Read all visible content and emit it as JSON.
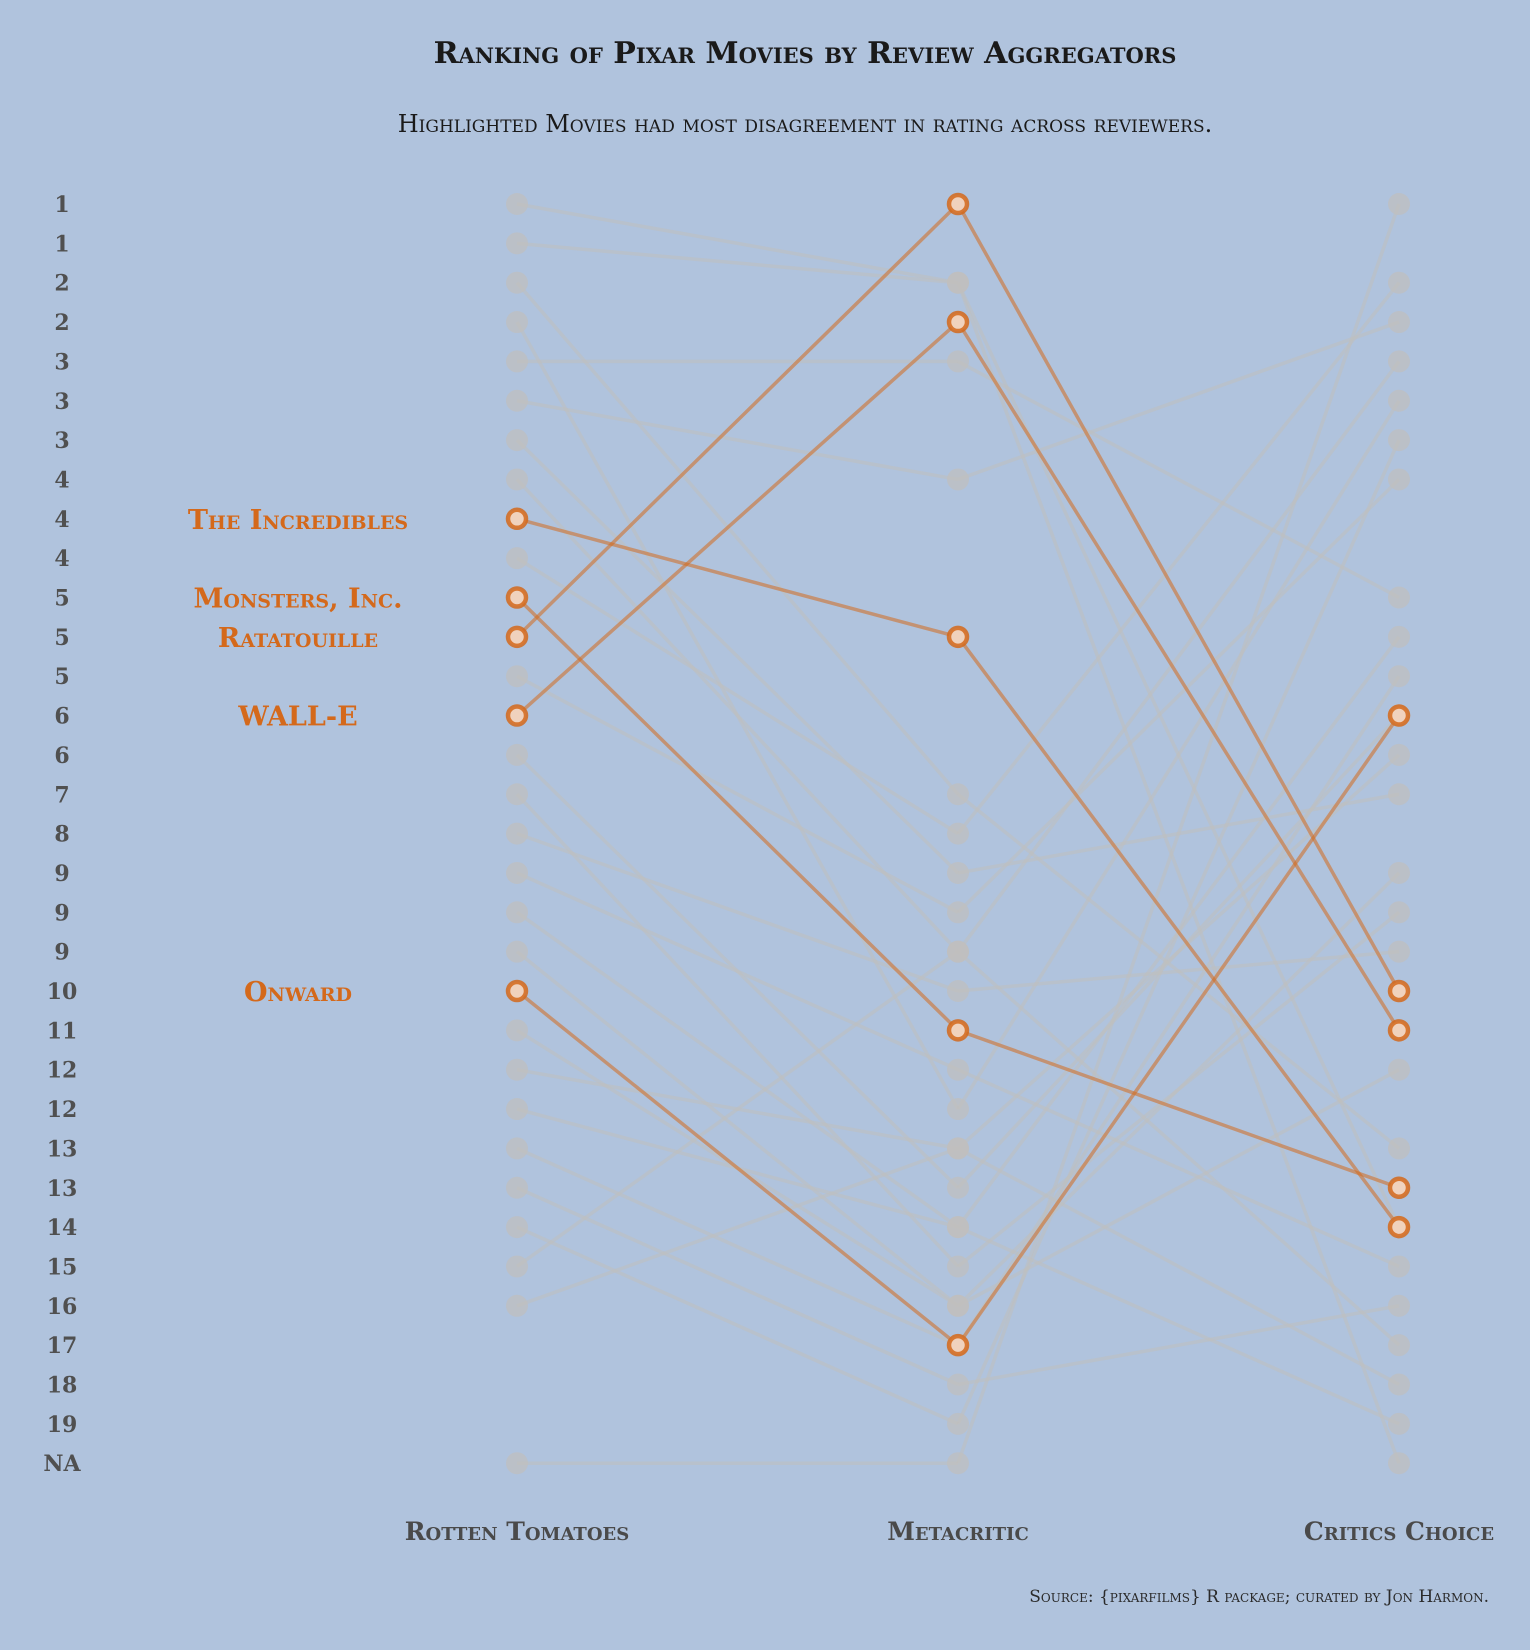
{
  "chart_data": {
    "type": "line",
    "title": "Ranking of Pixar Movies by Review Aggregators",
    "subtitle": "Highlighted Movies had most disagreement in rating across reviewers.",
    "caption": "Source: {pixarfilms} R package; curated by Jon Harmon.",
    "categories": [
      "Rotten Tomatoes",
      "Metacritic",
      "Critics Choice"
    ],
    "y_tick_labels": [
      "1",
      "1",
      "2",
      "2",
      "3",
      "3",
      "3",
      "4",
      "4",
      "4",
      "5",
      "5",
      "5",
      "6",
      "6",
      "7",
      "8",
      "9",
      "9",
      "9",
      "10",
      "11",
      "12",
      "12",
      "13",
      "13",
      "14",
      "15",
      "16",
      "17",
      "18",
      "19",
      "NA"
    ],
    "y_axis_direction": "reversed, rank 1 at top",
    "highlight_color": "#d4691b",
    "muted_color": "#c0bfbd",
    "series": [
      {
        "name": "The Incredibles",
        "values": [
          8,
          11,
          26
        ],
        "highlight": true
      },
      {
        "name": "Monsters, Inc.",
        "values": [
          10,
          21,
          25
        ],
        "highlight": true
      },
      {
        "name": "Ratatouille",
        "values": [
          11,
          0,
          20
        ],
        "highlight": true
      },
      {
        "name": "WALL-E",
        "values": [
          13,
          3,
          21
        ],
        "highlight": true
      },
      {
        "name": "Onward",
        "values": [
          20,
          29,
          13
        ],
        "highlight": true
      },
      {
        "values": [
          0,
          2,
          26
        ]
      },
      {
        "values": [
          1,
          2,
          32
        ]
      },
      {
        "values": [
          2,
          15,
          24
        ]
      },
      {
        "values": [
          4,
          4,
          10
        ]
      },
      {
        "values": [
          5,
          7,
          3
        ]
      },
      {
        "values": [
          6,
          17,
          15
        ]
      },
      {
        "values": [
          7,
          19,
          4
        ]
      },
      {
        "values": [
          9,
          16,
          2
        ]
      },
      {
        "values": [
          12,
          18,
          7
        ]
      },
      {
        "values": [
          15,
          27,
          18
        ]
      },
      {
        "values": [
          16,
          20,
          19
        ]
      },
      {
        "values": [
          17,
          22,
          27
        ]
      },
      {
        "values": [
          21,
          28,
          17
        ]
      },
      {
        "values": [
          22,
          24,
          14
        ]
      },
      {
        "values": [
          23,
          26,
          31
        ]
      },
      {
        "values": [
          25,
          30,
          28
        ]
      },
      {
        "values": [
          26,
          31,
          6
        ]
      },
      {
        "values": [
          27,
          19,
          29
        ]
      },
      {
        "values": [
          28,
          24,
          30
        ]
      },
      {
        "values": [
          32,
          32,
          0
        ]
      },
      {
        "values": [
          3,
          23,
          5
        ]
      },
      {
        "values": [
          14,
          25,
          13
        ]
      },
      {
        "values": [
          18,
          26,
          11
        ]
      },
      {
        "values": [
          19,
          28,
          22
        ]
      },
      {
        "values": [
          24,
          29,
          12
        ]
      }
    ]
  }
}
